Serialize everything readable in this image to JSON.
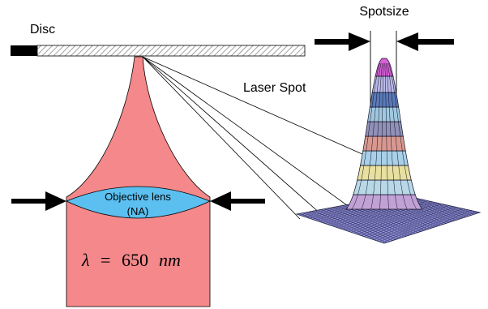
{
  "labels": {
    "disc": "Disc",
    "spotsize": "Spotsize",
    "laser_spot": "Laser Spot",
    "lens_line1": "Objective lens",
    "lens_line2": "(NA)",
    "lambda_symbol": "λ",
    "equals": "=",
    "wavelength_value": "650",
    "wavelength_unit": "nm"
  },
  "colors": {
    "beam": "#f4888a",
    "lens": "#5bc0f0",
    "arrow": "#000000",
    "disc_hatch": "#777777",
    "disc_edge": "#000000",
    "mesh_base": "#8f8fe8",
    "mesh_line": "#222244"
  },
  "icons": {
    "lens_arrows": "arrow-right-icon / arrow-left-icon",
    "spot_arrows": "arrow-right-icon / arrow-left-icon"
  }
}
